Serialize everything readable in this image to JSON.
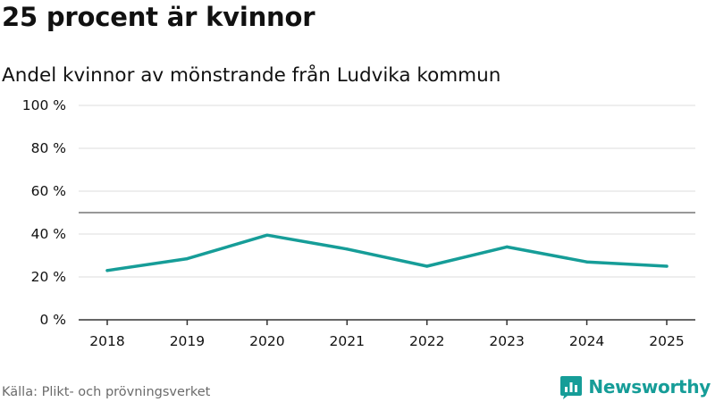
{
  "header": {
    "title": "25 procent är kvinnor",
    "subtitle": "Andel kvinnor av mönstrande från Ludvika kommun"
  },
  "footer": {
    "source": "Källa: Plikt- och prövningsverket",
    "brand": "Newsworthy"
  },
  "colors": {
    "line": "#169d98",
    "brand": "#169d98",
    "grid": "#dddddd",
    "reference_line": "#777777",
    "axis": "#333333",
    "text": "#111111",
    "muted": "#6b6b6b"
  },
  "chart_data": {
    "type": "line",
    "title": "25 procent är kvinnor",
    "subtitle": "Andel kvinnor av mönstrande från Ludvika kommun",
    "xlabel": "",
    "ylabel": "",
    "categories": [
      "2018",
      "2019",
      "2020",
      "2021",
      "2022",
      "2023",
      "2024",
      "2025"
    ],
    "series": [
      {
        "name": "Andel kvinnor",
        "values": [
          23,
          28.5,
          39.5,
          33,
          25,
          34,
          27,
          25
        ]
      }
    ],
    "ylim": [
      0,
      100
    ],
    "yticks": [
      0,
      20,
      40,
      60,
      80,
      100
    ],
    "ytick_labels": [
      "0 %",
      "20 %",
      "40 %",
      "60 %",
      "80 %",
      "100 %"
    ],
    "reference_line": 50,
    "grid": true,
    "legend": "none"
  }
}
